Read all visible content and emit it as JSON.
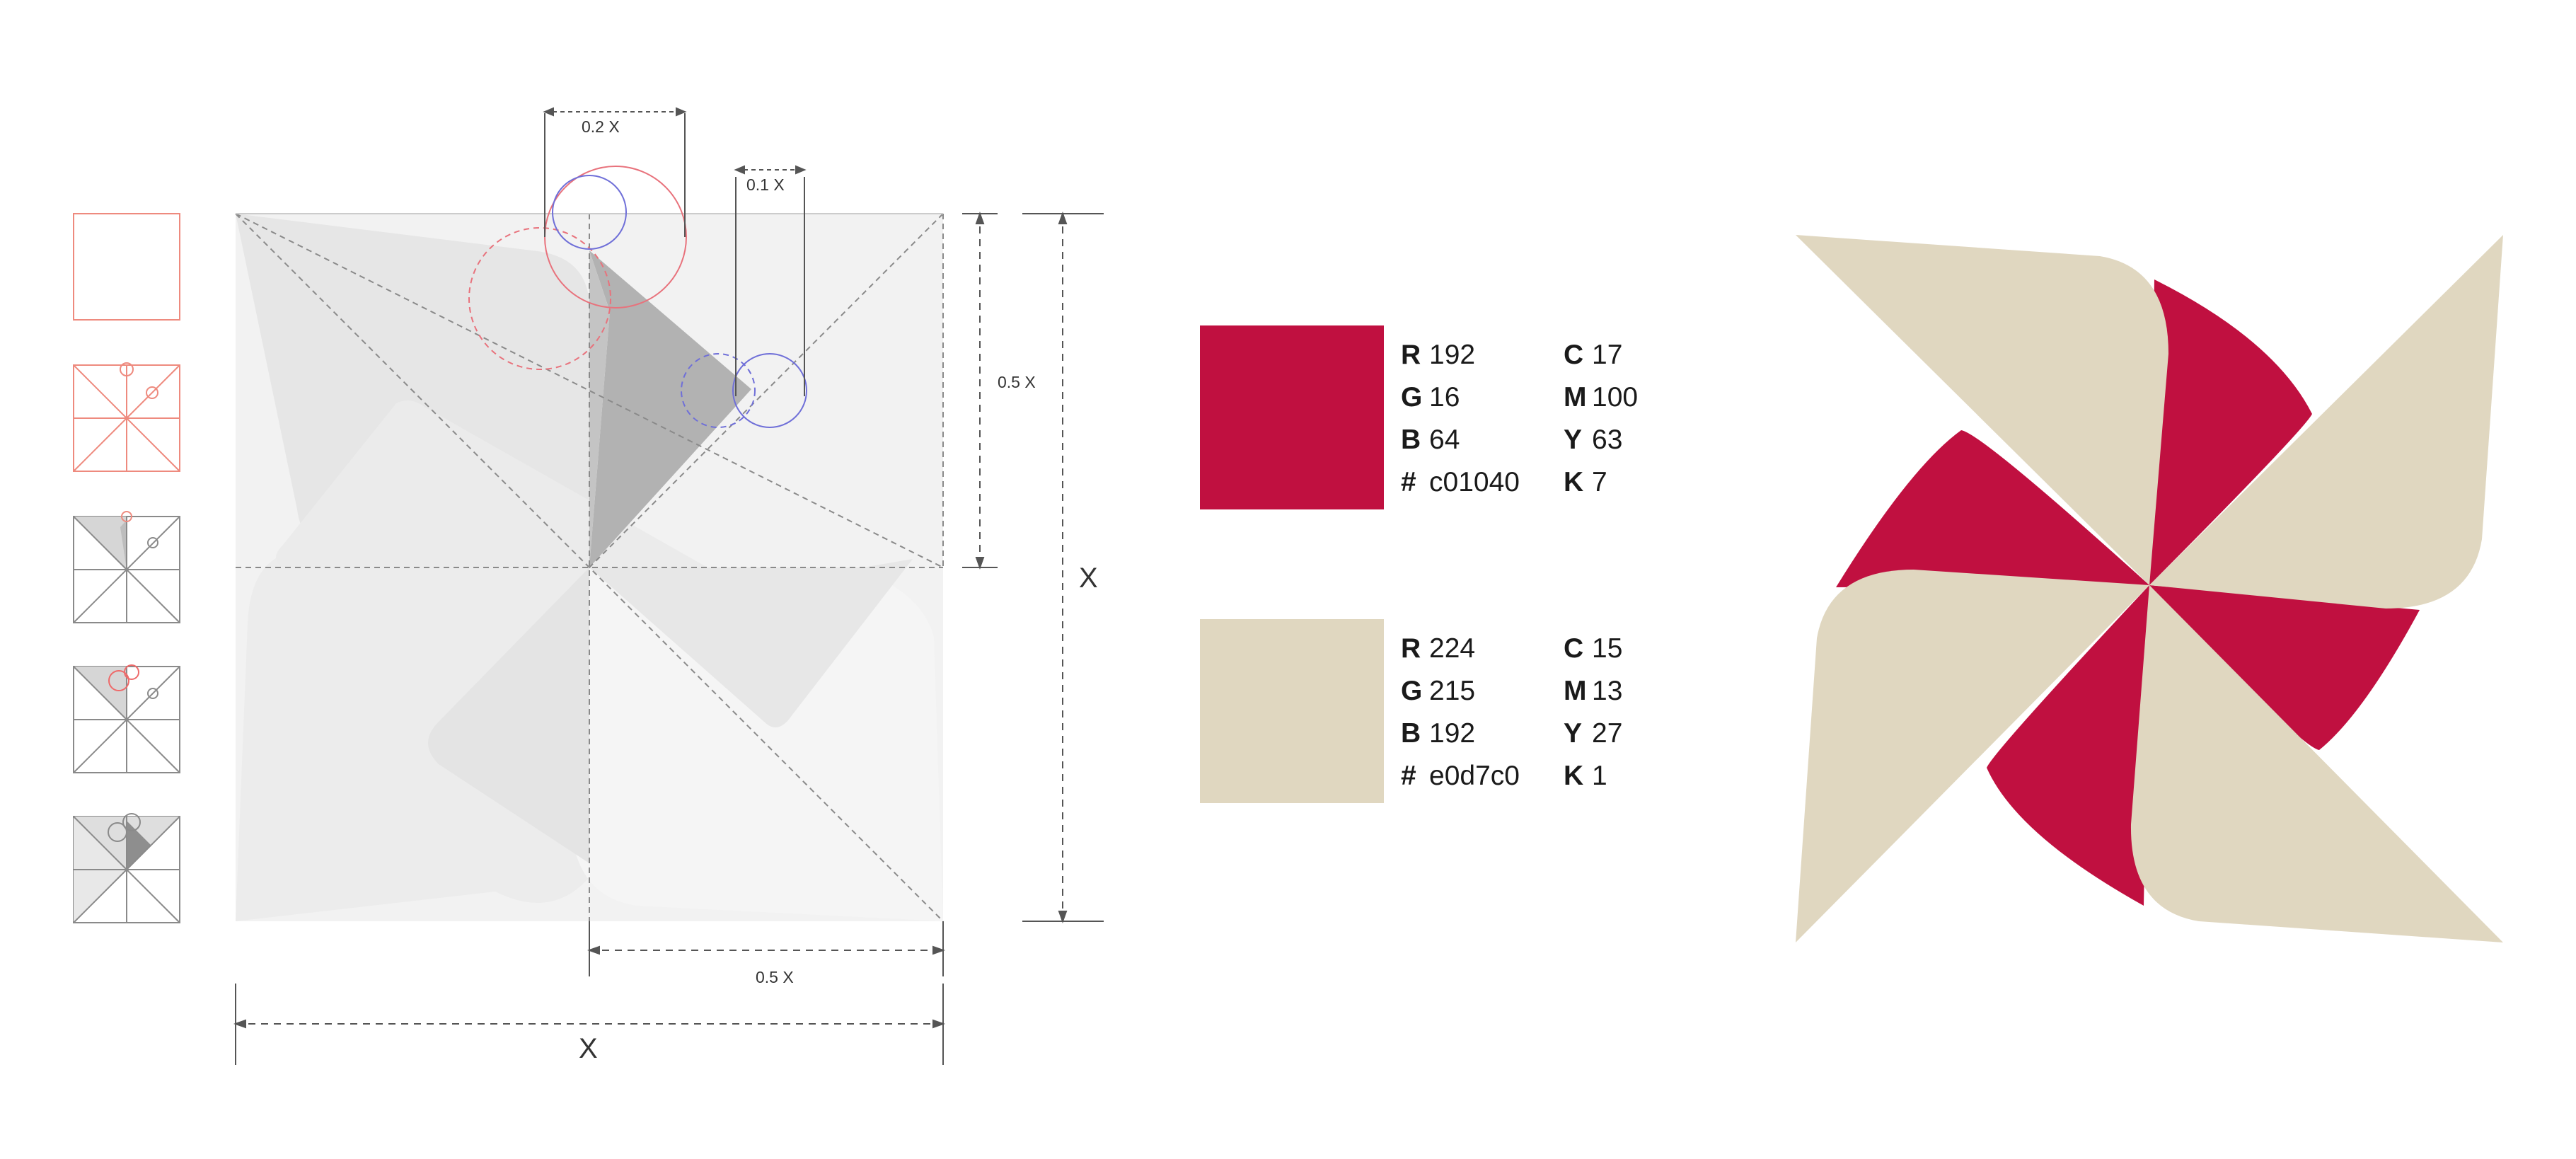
{
  "dimensions": {
    "top_small": "0.2 X",
    "top_smaller": "0.1 X",
    "right_half": "0.5 X",
    "right_full": "X",
    "bottom_half": "0.5 X",
    "bottom_full": "X"
  },
  "swatches": [
    {
      "name": "crimson",
      "color": "#c01040",
      "rgb": [
        {
          "k": "R",
          "v": "192"
        },
        {
          "k": "G",
          "v": "16"
        },
        {
          "k": "B",
          "v": "64"
        },
        {
          "k": "#",
          "v": "c01040"
        }
      ],
      "cmyk": [
        {
          "k": "C",
          "v": "17"
        },
        {
          "k": "M",
          "v": "100"
        },
        {
          "k": "Y",
          "v": "63"
        },
        {
          "k": "K",
          "v": "7"
        }
      ]
    },
    {
      "name": "sand",
      "color": "#e0d7c0",
      "rgb": [
        {
          "k": "R",
          "v": "224"
        },
        {
          "k": "G",
          "v": "215"
        },
        {
          "k": "B",
          "v": "192"
        },
        {
          "k": "#",
          "v": "e0d7c0"
        }
      ],
      "cmyk": [
        {
          "k": "C",
          "v": "15"
        },
        {
          "k": "M",
          "v": "13"
        },
        {
          "k": "Y",
          "v": "27"
        },
        {
          "k": "K",
          "v": "1"
        }
      ]
    }
  ],
  "colors": {
    "accent": "#c01040",
    "sand": "#e0d7c0",
    "guide_red": "#e8727c",
    "guide_blue": "#6f6fd8"
  }
}
